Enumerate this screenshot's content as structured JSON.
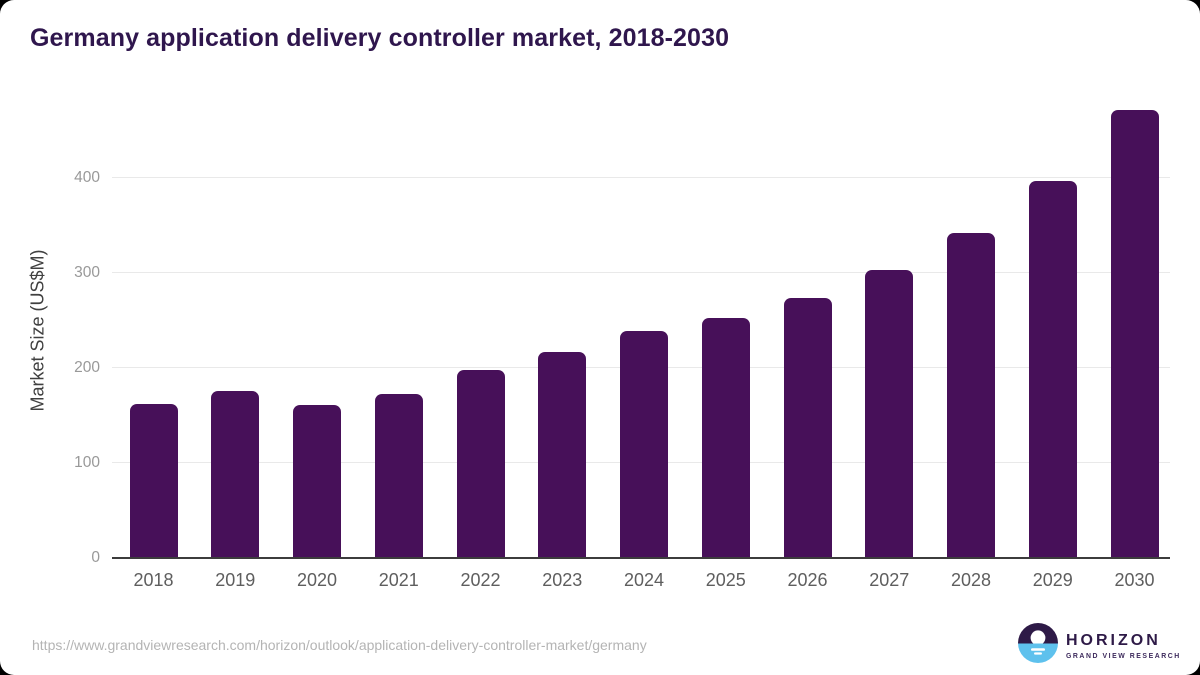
{
  "title": "Germany application delivery controller market, 2018-2030",
  "chart_data": {
    "type": "bar",
    "categories": [
      "2018",
      "2019",
      "2020",
      "2021",
      "2022",
      "2023",
      "2024",
      "2025",
      "2026",
      "2027",
      "2028",
      "2029",
      "2030"
    ],
    "values": [
      161,
      175,
      160,
      172,
      197,
      216,
      238,
      252,
      273,
      302,
      341,
      396,
      470
    ],
    "title": "Germany application delivery controller market, 2018-2030",
    "xlabel": "",
    "ylabel": "Market Size (US$M)",
    "ylim": [
      0,
      482
    ],
    "yticks": [
      0,
      100,
      200,
      300,
      400
    ],
    "grid": true,
    "legend": false,
    "bar_color": "#471059"
  },
  "colors": {
    "bar": "#471059",
    "title": "#2f164d",
    "gridline": "#e9e9e9",
    "axis_line": "#3c3c3c",
    "logo_purple": "#2e1a47",
    "logo_blue": "#5ec1ed"
  },
  "footer": {
    "source_url": "https://www.grandviewresearch.com/horizon/outlook/application-delivery-controller-market/germany",
    "logo_brand": "HORIZON",
    "logo_sub": "GRAND VIEW RESEARCH"
  }
}
